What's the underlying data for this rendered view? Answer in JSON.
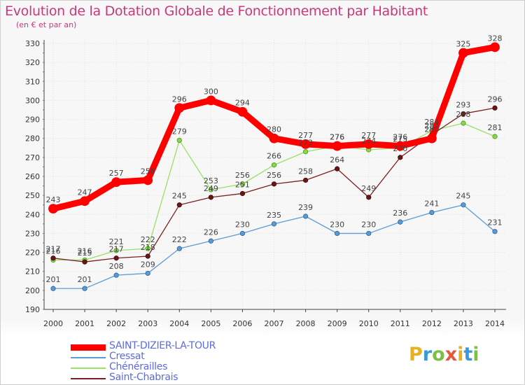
{
  "title": "Evolution de la Dotation Globale de Fonctionnement par Habitant",
  "subtitle": "(en € et par an)",
  "brand": "Proxiti",
  "chart_data": {
    "type": "line",
    "title": "Evolution de la Dotation Globale de Fonctionnement par Habitant",
    "subtitle": "(en € et par an)",
    "xlabel": "",
    "ylabel": "",
    "categories": [
      "2000",
      "2001",
      "2002",
      "2003",
      "2004",
      "2005",
      "2006",
      "2007",
      "2008",
      "2009",
      "2010",
      "2011",
      "2012",
      "2013",
      "2014"
    ],
    "ylim": [
      190,
      330
    ],
    "yticks": [
      190,
      200,
      210,
      220,
      230,
      240,
      250,
      260,
      270,
      280,
      290,
      300,
      310,
      320,
      330
    ],
    "grid": true,
    "legend_position": "bottom-left",
    "series": [
      {
        "name": "SAINT-DIZIER-LA-TOUR",
        "color": "#ff0000",
        "values": [
          243,
          247,
          257,
          258,
          296,
          300,
          294,
          280,
          277,
          276,
          277,
          276,
          280,
          325,
          328
        ]
      },
      {
        "name": "Cressat",
        "color": "#5b9bd5",
        "values": [
          201,
          201,
          208,
          209,
          222,
          226,
          230,
          235,
          239,
          230,
          230,
          236,
          241,
          245,
          231
        ]
      },
      {
        "name": "Chénérailles",
        "color": "#99e066",
        "values": [
          216,
          216,
          221,
          222,
          279,
          253,
          256,
          266,
          273,
          276,
          274,
          275,
          284,
          288,
          281
        ]
      },
      {
        "name": "Saint-Chabrais",
        "color": "#7a1f1f",
        "values": [
          217,
          215,
          217,
          218,
          245,
          249,
          251,
          256,
          258,
          264,
          249,
          270,
          282,
          293,
          296
        ]
      }
    ]
  }
}
